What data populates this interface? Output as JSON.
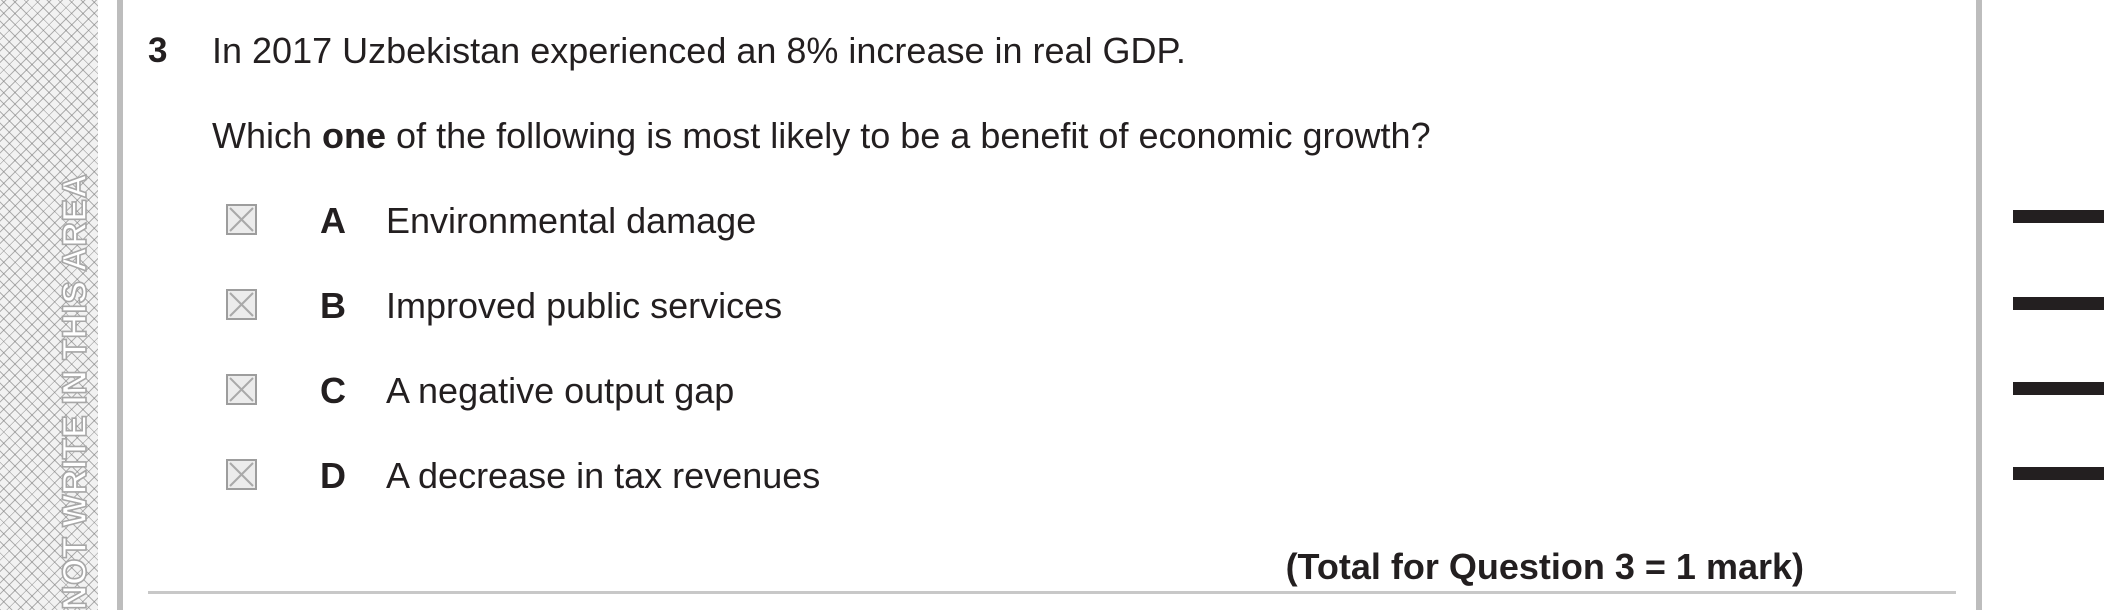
{
  "margin": {
    "text": "NOT WRITE IN THIS AREA"
  },
  "question": {
    "number": "3",
    "stem": "In 2017 Uzbekistan experienced an 8% increase in real GDP.",
    "prompt_before": "Which ",
    "prompt_bold": "one",
    "prompt_after": " of the following is most likely to be a benefit of economic growth?"
  },
  "options": [
    {
      "letter": "A",
      "text": "Environmental damage"
    },
    {
      "letter": "B",
      "text": "Improved public services"
    },
    {
      "letter": "C",
      "text": "A negative output gap"
    },
    {
      "letter": "D",
      "text": "A decrease in tax revenues"
    }
  ],
  "total": "(Total for Question 3 = 1 mark)"
}
